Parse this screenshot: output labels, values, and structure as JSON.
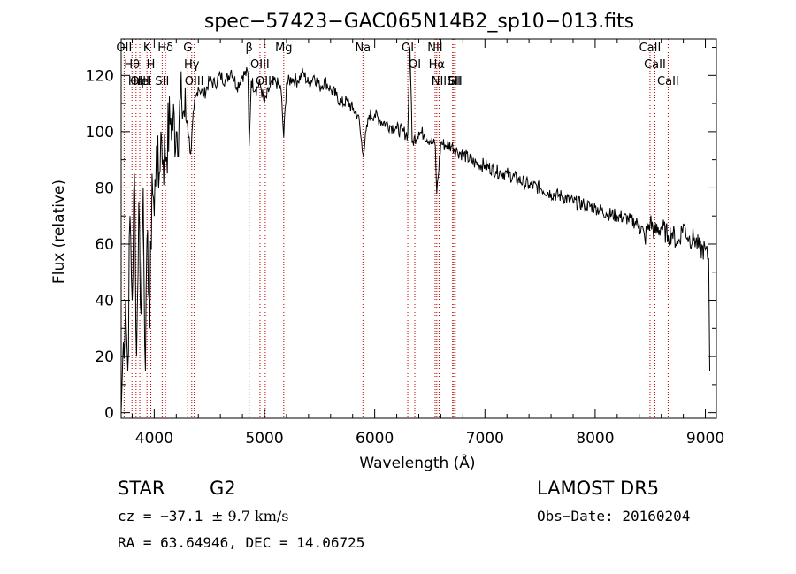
{
  "chart_data": {
    "type": "line",
    "title": "spec−57423−GAC065N14B2_sp10−013.fits",
    "xlabel": "Wavelength (Å)",
    "ylabel": "Flux (relative)",
    "xlim": [
      3700,
      9100
    ],
    "ylim": [
      -2,
      133
    ],
    "x_ticks": [
      4000,
      5000,
      6000,
      7000,
      8000,
      9000
    ],
    "y_ticks": [
      0,
      20,
      40,
      60,
      80,
      100,
      120
    ],
    "grid": false,
    "series": [
      {
        "x": [
          3700,
          3720,
          3740,
          3760,
          3780,
          3800,
          3820,
          3840,
          3860,
          3880,
          3900,
          3920,
          3940,
          3960,
          3980,
          4000,
          4020,
          4040,
          4060,
          4080,
          4100,
          4150,
          4200,
          4250,
          4300,
          4330,
          4360,
          4400,
          4450,
          4500,
          4550,
          4600,
          4650,
          4700,
          4750,
          4800,
          4850,
          4861,
          4880,
          4920,
          4960,
          5000,
          5050,
          5100,
          5150,
          5175,
          5200,
          5250,
          5300,
          5350,
          5400,
          5450,
          5500,
          5550,
          5600,
          5650,
          5700,
          5750,
          5800,
          5850,
          5893,
          5950,
          6000,
          6050,
          6100,
          6150,
          6200,
          6250,
          6300,
          6320,
          6340,
          6400,
          6450,
          6500,
          6550,
          6563,
          6600,
          6650,
          6700,
          6750,
          6800,
          6900,
          7000,
          7100,
          7200,
          7300,
          7400,
          7500,
          7600,
          7700,
          7800,
          7900,
          8000,
          8100,
          8200,
          8300,
          8400,
          8450,
          8500,
          8542,
          8600,
          8662,
          8700,
          8750,
          8800,
          8850,
          8900,
          8950,
          9000,
          9020,
          9030,
          9040
        ],
        "y": [
          0,
          25,
          40,
          15,
          70,
          40,
          85,
          20,
          75,
          35,
          80,
          15,
          65,
          30,
          85,
          70,
          95,
          80,
          100,
          90,
          92,
          105,
          100,
          110,
          104,
          92,
          108,
          116,
          113,
          118,
          117,
          120,
          118,
          122,
          116,
          120,
          121,
          95,
          118,
          115,
          117,
          110,
          116,
          118,
          115,
          98,
          117,
          119,
          118,
          121,
          117,
          120,
          116,
          118,
          115,
          113,
          110,
          111,
          108,
          106,
          92,
          106,
          106,
          104,
          103,
          102,
          101,
          100,
          99,
          131,
          96,
          100,
          99,
          97,
          95,
          78,
          96,
          95,
          95,
          93,
          92,
          89,
          88,
          86,
          85,
          83,
          81,
          80,
          78,
          77,
          75,
          74,
          73,
          71,
          70,
          69,
          67,
          62,
          68,
          64,
          66,
          63,
          64,
          60,
          67,
          62,
          62,
          58,
          58,
          55,
          55,
          15
        ]
      }
    ],
    "line_marks": [
      {
        "x": 3727,
        "labels": [
          "OII"
        ]
      },
      {
        "x": 3798,
        "labels": [
          "Hθ"
        ]
      },
      {
        "x": 3835,
        "labels": [
          "Hη"
        ]
      },
      {
        "x": 3869,
        "labels": [
          "OIII"
        ]
      },
      {
        "x": 3889,
        "labels": [
          "HeI"
        ]
      },
      {
        "x": 3934,
        "labels": [
          "K"
        ]
      },
      {
        "x": 3969,
        "labels": [
          "H"
        ]
      },
      {
        "x": 4072,
        "labels": [
          "SII"
        ]
      },
      {
        "x": 4102,
        "labels": [
          "Hδ"
        ]
      },
      {
        "x": 4304,
        "labels": [
          "G"
        ]
      },
      {
        "x": 4340,
        "labels": [
          "Hγ"
        ]
      },
      {
        "x": 4363,
        "labels": [
          "OIII"
        ]
      },
      {
        "x": 4861,
        "labels": [
          "β"
        ]
      },
      {
        "x": 4959,
        "labels": [
          "OIII"
        ]
      },
      {
        "x": 5007,
        "labels": [
          "OIII"
        ]
      },
      {
        "x": 5175,
        "labels": [
          "Mg"
        ]
      },
      {
        "x": 5893,
        "labels": [
          "Na"
        ]
      },
      {
        "x": 6300,
        "labels": [
          "OI"
        ]
      },
      {
        "x": 6364,
        "labels": [
          "OI"
        ]
      },
      {
        "x": 6548,
        "labels": [
          "NII"
        ]
      },
      {
        "x": 6563,
        "labels": [
          "Hα"
        ]
      },
      {
        "x": 6584,
        "labels": [
          "NII"
        ]
      },
      {
        "x": 6707,
        "labels": [
          "Li"
        ]
      },
      {
        "x": 6717,
        "labels": [
          "SII"
        ]
      },
      {
        "x": 6731,
        "labels": [
          "SII"
        ]
      },
      {
        "x": 8498,
        "labels": [
          "CaII"
        ]
      },
      {
        "x": 8542,
        "labels": [
          "CaII"
        ]
      },
      {
        "x": 8662,
        "labels": [
          "CaII"
        ]
      }
    ],
    "line_colors": {
      "spectrum": "#000000",
      "markers": "#c00000"
    }
  },
  "info": {
    "class": "STAR",
    "subclass": "G2",
    "cz_prefix": "cz = −37.1 ",
    "cz_value": "± 9.7 km/s",
    "coords": "RA =  63.64946, DEC =  14.06725",
    "survey": "LAMOST  DR5",
    "obs_date": "Obs−Date: 20160204"
  }
}
